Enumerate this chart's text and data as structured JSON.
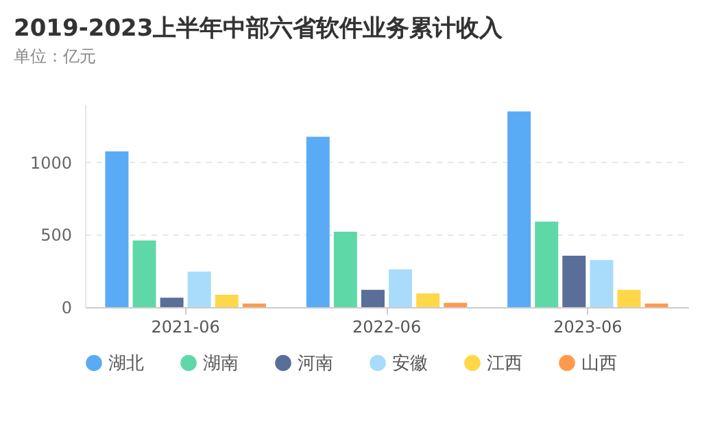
{
  "chart_data": {
    "type": "bar",
    "title": "2019-2023上半年中部六省软件业务累计收入",
    "subtitle": "单位：亿元",
    "categories": [
      "2021-06",
      "2022-06",
      "2023-06"
    ],
    "series": [
      {
        "name": "湖北",
        "color": "#5aabf5",
        "values": [
          1075,
          1175,
          1350
        ]
      },
      {
        "name": "湖南",
        "color": "#5fd8a8",
        "values": [
          460,
          520,
          590
        ]
      },
      {
        "name": "河南",
        "color": "#5a6e99",
        "values": [
          65,
          120,
          355
        ]
      },
      {
        "name": "安徽",
        "color": "#a8dcfa",
        "values": [
          245,
          260,
          325
        ]
      },
      {
        "name": "江西",
        "color": "#ffd84a",
        "values": [
          85,
          95,
          120
        ]
      },
      {
        "name": "山西",
        "color": "#ff9a4d",
        "values": [
          25,
          30,
          25
        ]
      }
    ],
    "ylim": [
      0,
      1400
    ],
    "yticks": [
      0,
      500,
      1000
    ],
    "grid": "y",
    "legend": "bottom"
  }
}
